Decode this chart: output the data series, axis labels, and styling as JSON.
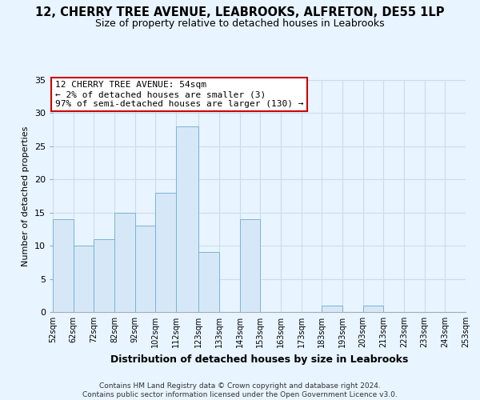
{
  "title": "12, CHERRY TREE AVENUE, LEABROOKS, ALFRETON, DE55 1LP",
  "subtitle": "Size of property relative to detached houses in Leabrooks",
  "xlabel": "Distribution of detached houses by size in Leabrooks",
  "ylabel": "Number of detached properties",
  "bin_edges": [
    52,
    62,
    72,
    82,
    92,
    102,
    112,
    123,
    133,
    143,
    153,
    163,
    173,
    183,
    193,
    203,
    213,
    223,
    233,
    243,
    253
  ],
  "bin_heights": [
    14,
    10,
    11,
    15,
    13,
    18,
    28,
    9,
    0,
    14,
    0,
    0,
    0,
    1,
    0,
    1,
    0,
    0,
    0,
    0
  ],
  "bar_color": "#d6e8f7",
  "bar_edge_color": "#7ab3d9",
  "annotation_text": "12 CHERRY TREE AVENUE: 54sqm\n← 2% of detached houses are smaller (3)\n97% of semi-detached houses are larger (130) →",
  "annotation_box_color": "white",
  "annotation_box_edge_color": "#cc0000",
  "ylim": [
    0,
    35
  ],
  "xlim": [
    52,
    253
  ],
  "tick_labels": [
    "52sqm",
    "62sqm",
    "72sqm",
    "82sqm",
    "92sqm",
    "102sqm",
    "112sqm",
    "123sqm",
    "133sqm",
    "143sqm",
    "153sqm",
    "163sqm",
    "173sqm",
    "183sqm",
    "193sqm",
    "203sqm",
    "213sqm",
    "223sqm",
    "233sqm",
    "243sqm",
    "253sqm"
  ],
  "footer_line1": "Contains HM Land Registry data © Crown copyright and database right 2024.",
  "footer_line2": "Contains public sector information licensed under the Open Government Licence v3.0.",
  "background_color": "#e8f4ff",
  "plot_bg_color": "#e8f4ff",
  "grid_color": "#c8ddf0"
}
